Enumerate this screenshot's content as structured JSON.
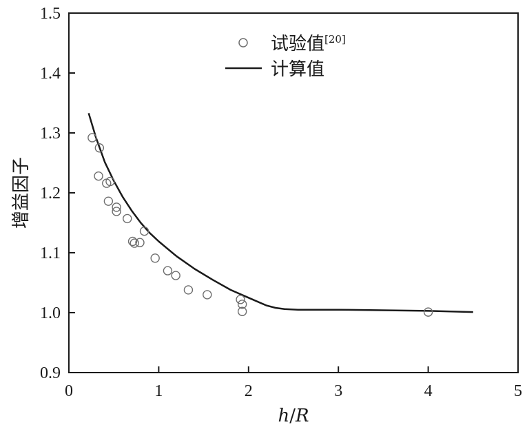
{
  "chart_data": {
    "type": "scatter",
    "xlabel_main": "h",
    "xlabel_sep": "/",
    "xlabel_rest": "R",
    "ylabel": "增益因子",
    "xlim": [
      0,
      5
    ],
    "ylim": [
      0.9,
      1.5
    ],
    "xticks": [
      "0",
      "1",
      "2",
      "3",
      "4",
      "5"
    ],
    "yticks": [
      "0.9",
      "1.0",
      "1.1",
      "1.2",
      "1.3",
      "1.4",
      "1.5"
    ],
    "legend_position": "top-center",
    "series": [
      {
        "name": "试验值",
        "name_sup": "[20]",
        "type": "scatter",
        "marker": "open-circle",
        "color": "#6e6e6e",
        "points": [
          [
            0.26,
            1.292
          ],
          [
            0.34,
            1.275
          ],
          [
            0.33,
            1.228
          ],
          [
            0.42,
            1.216
          ],
          [
            0.46,
            1.219
          ],
          [
            0.44,
            1.186
          ],
          [
            0.53,
            1.176
          ],
          [
            0.53,
            1.169
          ],
          [
            0.65,
            1.157
          ],
          [
            0.84,
            1.136
          ],
          [
            0.71,
            1.119
          ],
          [
            0.73,
            1.116
          ],
          [
            0.79,
            1.117
          ],
          [
            0.96,
            1.091
          ],
          [
            1.1,
            1.07
          ],
          [
            1.19,
            1.062
          ],
          [
            1.33,
            1.038
          ],
          [
            1.54,
            1.03
          ],
          [
            1.91,
            1.022
          ],
          [
            1.93,
            1.014
          ],
          [
            1.93,
            1.002
          ],
          [
            4.0,
            1.001
          ]
        ]
      },
      {
        "name": "计算值",
        "type": "line",
        "color": "#1a1a1a",
        "points": [
          [
            0.22,
            1.333
          ],
          [
            0.3,
            1.293
          ],
          [
            0.4,
            1.251
          ],
          [
            0.5,
            1.22
          ],
          [
            0.6,
            1.193
          ],
          [
            0.7,
            1.17
          ],
          [
            0.8,
            1.15
          ],
          [
            0.9,
            1.133
          ],
          [
            1.0,
            1.119
          ],
          [
            1.2,
            1.094
          ],
          [
            1.4,
            1.073
          ],
          [
            1.6,
            1.055
          ],
          [
            1.8,
            1.038
          ],
          [
            2.0,
            1.025
          ],
          [
            2.2,
            1.012
          ],
          [
            2.3,
            1.008
          ],
          [
            2.4,
            1.006
          ],
          [
            2.55,
            1.005
          ],
          [
            3.0,
            1.005
          ],
          [
            4.0,
            1.003
          ],
          [
            4.5,
            1.001
          ]
        ]
      }
    ]
  }
}
